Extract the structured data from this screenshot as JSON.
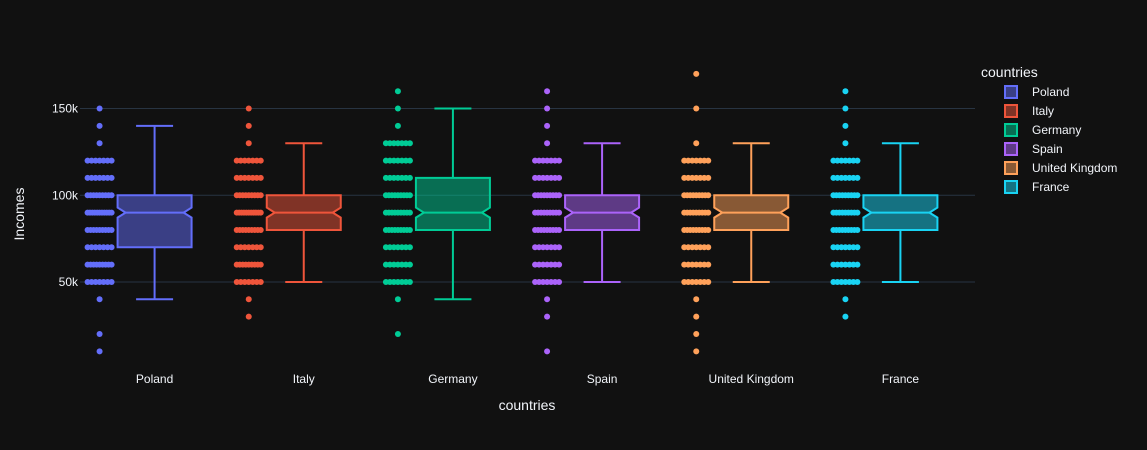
{
  "chart_data": {
    "type": "box",
    "xlabel": "countries",
    "ylabel": "Incomes",
    "ylim": [
      5000,
      178000
    ],
    "yticks": [
      50000,
      100000,
      150000
    ],
    "ytick_labels": [
      "50k",
      "100k",
      "150k"
    ],
    "notched": true,
    "points": "all",
    "grid": true,
    "legend": {
      "title": "countries",
      "placement": "right"
    },
    "categories": [
      "Poland",
      "Italy",
      "Germany",
      "Spain",
      "United Kingdom",
      "France"
    ],
    "series": [
      {
        "name": "Poland",
        "color": "#636efa",
        "box": {
          "lowerfence": 40000,
          "q1": 70000,
          "median": 90000,
          "q3": 100000,
          "upperfence": 140000
        },
        "points": [
          10000,
          20000,
          40000,
          50000,
          50000,
          60000,
          60000,
          60000,
          70000,
          70000,
          80000,
          80000,
          80000,
          90000,
          90000,
          90000,
          90000,
          100000,
          100000,
          100000,
          110000,
          110000,
          120000,
          120000,
          130000,
          140000,
          150000
        ]
      },
      {
        "name": "Italy",
        "color": "#EF553B",
        "box": {
          "lowerfence": 50000,
          "q1": 80000,
          "median": 90000,
          "q3": 100000,
          "upperfence": 130000
        },
        "points": [
          30000,
          40000,
          50000,
          50000,
          60000,
          60000,
          60000,
          70000,
          70000,
          80000,
          80000,
          80000,
          90000,
          90000,
          90000,
          90000,
          100000,
          100000,
          100000,
          110000,
          110000,
          120000,
          120000,
          130000,
          140000,
          150000
        ]
      },
      {
        "name": "Germany",
        "color": "#00cc96",
        "box": {
          "lowerfence": 40000,
          "q1": 80000,
          "median": 90000,
          "q3": 110000,
          "upperfence": 150000
        },
        "points": [
          20000,
          40000,
          50000,
          50000,
          60000,
          60000,
          70000,
          70000,
          80000,
          80000,
          80000,
          90000,
          90000,
          90000,
          100000,
          100000,
          100000,
          110000,
          110000,
          120000,
          120000,
          130000,
          130000,
          140000,
          150000,
          160000
        ]
      },
      {
        "name": "Spain",
        "color": "#ab63fa",
        "box": {
          "lowerfence": 50000,
          "q1": 80000,
          "median": 90000,
          "q3": 100000,
          "upperfence": 130000
        },
        "points": [
          10000,
          30000,
          40000,
          50000,
          50000,
          60000,
          60000,
          70000,
          70000,
          80000,
          80000,
          80000,
          90000,
          90000,
          90000,
          100000,
          100000,
          100000,
          110000,
          110000,
          120000,
          120000,
          130000,
          140000,
          150000,
          160000
        ]
      },
      {
        "name": "United Kingdom",
        "color": "#FFA15A",
        "box": {
          "lowerfence": 50000,
          "q1": 80000,
          "median": 90000,
          "q3": 100000,
          "upperfence": 130000
        },
        "points": [
          10000,
          20000,
          30000,
          40000,
          50000,
          50000,
          60000,
          60000,
          70000,
          70000,
          80000,
          80000,
          80000,
          90000,
          90000,
          90000,
          100000,
          100000,
          100000,
          110000,
          110000,
          120000,
          120000,
          130000,
          150000,
          170000
        ]
      },
      {
        "name": "France",
        "color": "#19d3f3",
        "box": {
          "lowerfence": 50000,
          "q1": 80000,
          "median": 90000,
          "q3": 100000,
          "upperfence": 130000
        },
        "points": [
          30000,
          40000,
          50000,
          50000,
          60000,
          60000,
          70000,
          70000,
          80000,
          80000,
          80000,
          90000,
          90000,
          90000,
          100000,
          100000,
          100000,
          110000,
          110000,
          120000,
          120000,
          130000,
          140000,
          150000,
          160000
        ]
      }
    ]
  }
}
